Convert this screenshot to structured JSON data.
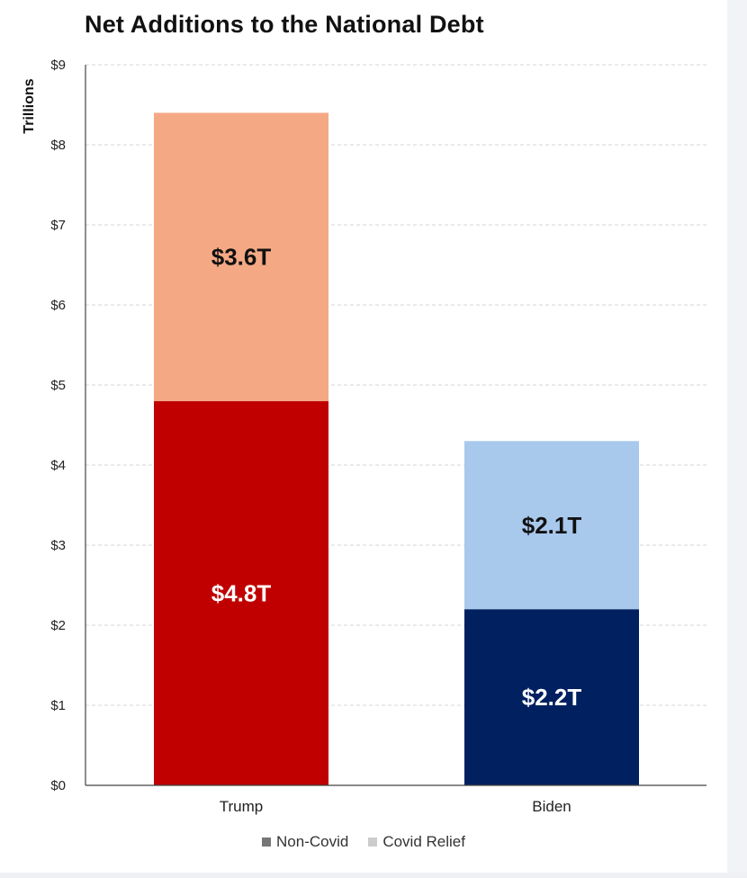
{
  "chart_data": {
    "type": "bar",
    "stacked": true,
    "title": "Net Additions to the National Debt",
    "ylabel": "Trillions",
    "xlabel": "",
    "categories": [
      "Trump",
      "Biden"
    ],
    "ylim": [
      0,
      9
    ],
    "yticks": [
      0,
      1,
      2,
      3,
      4,
      5,
      6,
      7,
      8,
      9
    ],
    "ytick_labels": [
      "$0",
      "$1",
      "$2",
      "$3",
      "$4",
      "$5",
      "$6",
      "$7",
      "$8",
      "$9"
    ],
    "grid": true,
    "legend_position": "bottom",
    "series": [
      {
        "name": "Non-Covid",
        "values": [
          4.8,
          2.2
        ],
        "labels": [
          "$4.8T",
          "$2.2T"
        ],
        "colors": [
          "#c00000",
          "#002060"
        ],
        "label_color": "#ffffff"
      },
      {
        "name": "Covid Relief",
        "values": [
          3.6,
          2.1
        ],
        "labels": [
          "$3.6T",
          "$2.1T"
        ],
        "colors": [
          "#f4a984",
          "#a8c8ec"
        ],
        "label_color": "#111111"
      }
    ],
    "legend_swatch_colors": [
      "#777777",
      "#cccccc"
    ]
  }
}
